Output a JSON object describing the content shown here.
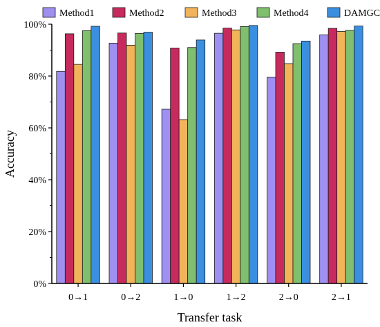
{
  "chart_data": {
    "type": "bar",
    "title": "",
    "xlabel": "Transfer task",
    "ylabel": "Accuracy",
    "ylim": [
      0,
      100
    ],
    "yticks": [
      0,
      20,
      40,
      60,
      80,
      100
    ],
    "ytick_labels": [
      "0%",
      "20%",
      "40%",
      "60%",
      "80%",
      "100%"
    ],
    "categories": [
      "0→1",
      "0→2",
      "1→0",
      "1→2",
      "2→0",
      "2→1"
    ],
    "grid": false,
    "legend_position": "top",
    "series": [
      {
        "name": "Method1",
        "color": "#9f8ff0",
        "values": [
          81.8,
          92.7,
          67.2,
          96.5,
          79.6,
          95.9
        ]
      },
      {
        "name": "Method2",
        "color": "#c72b5e",
        "values": [
          96.3,
          96.6,
          90.8,
          98.5,
          89.2,
          98.4
        ]
      },
      {
        "name": "Method3",
        "color": "#f2b45a",
        "values": [
          84.5,
          91.9,
          63.2,
          97.8,
          84.8,
          97.2
        ]
      },
      {
        "name": "Method4",
        "color": "#7fbf6e",
        "values": [
          97.5,
          96.4,
          91.0,
          99.1,
          92.5,
          97.6
        ]
      },
      {
        "name": "DAMGCN",
        "color": "#3b8fe0",
        "values": [
          99.2,
          96.9,
          93.9,
          99.5,
          93.5,
          99.3
        ]
      }
    ]
  }
}
